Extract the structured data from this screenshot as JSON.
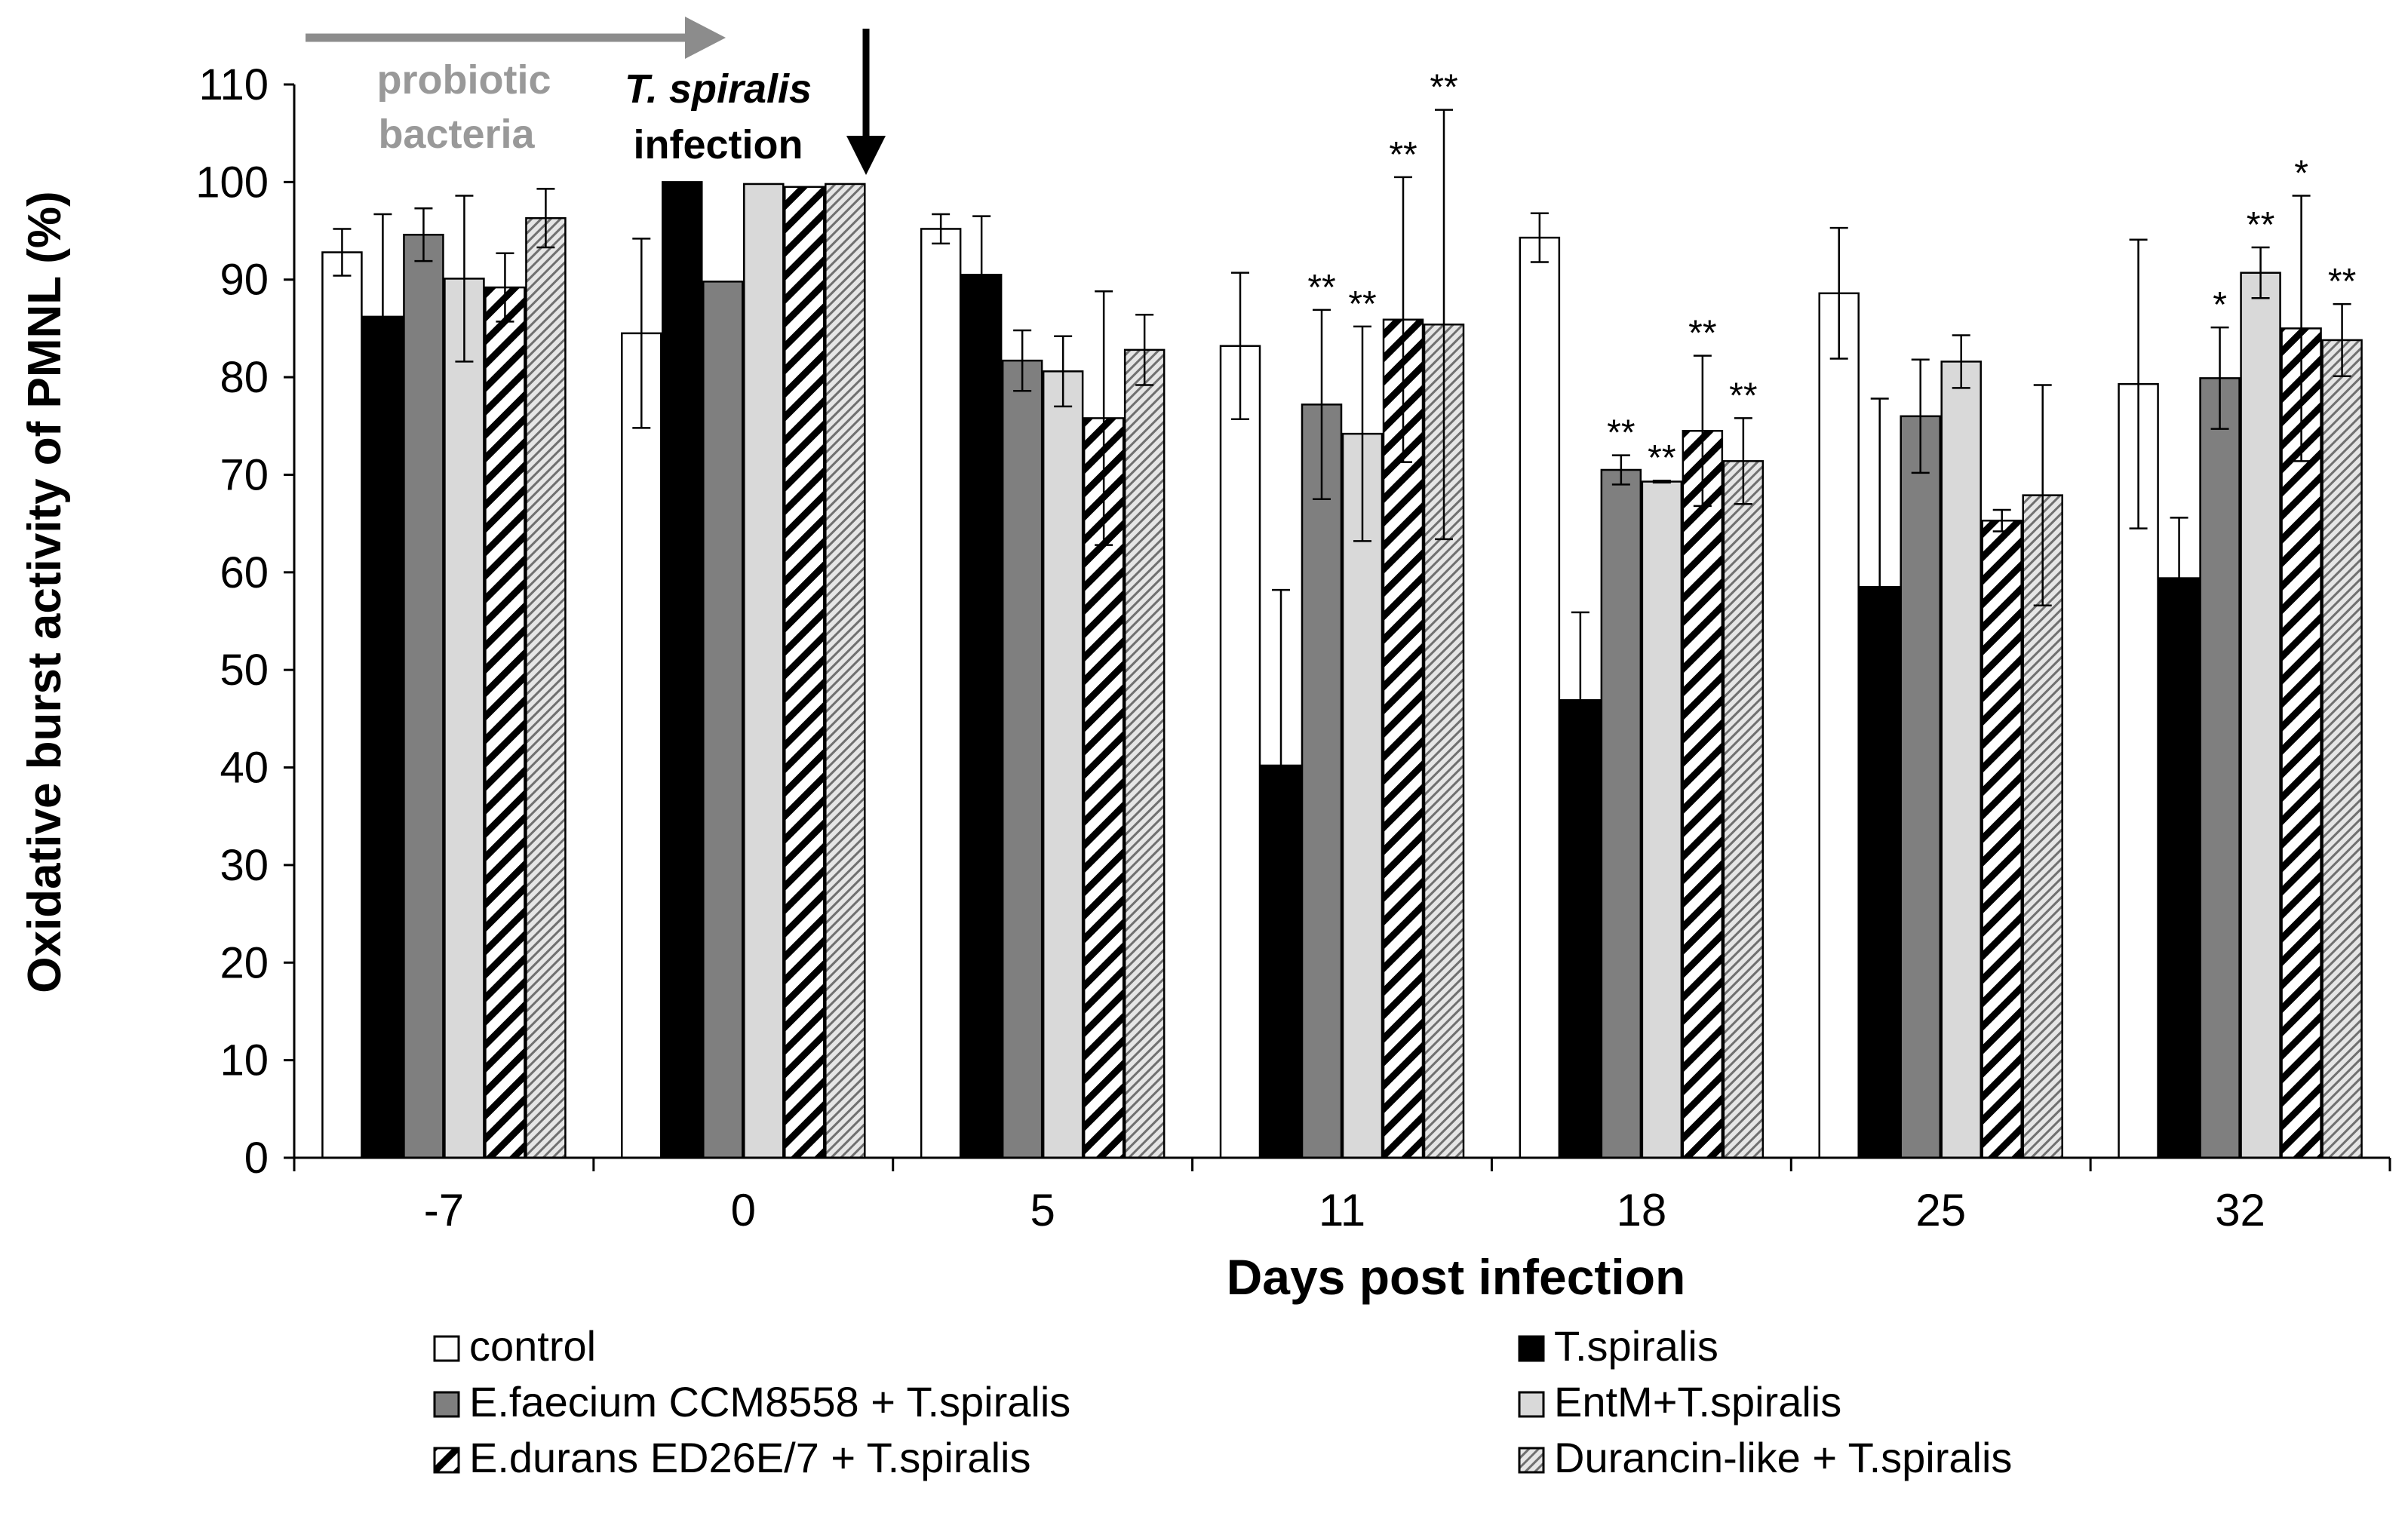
{
  "chart_data": {
    "type": "bar",
    "title": "",
    "xlabel": "Days post infection",
    "ylabel": "Oxidative burst activity of PMNL (%)",
    "ylim": [
      0,
      110
    ],
    "ytick_step": 10,
    "yticks": [
      "0",
      "10",
      "20",
      "30",
      "40",
      "50",
      "60",
      "70",
      "80",
      "90",
      "100",
      "110"
    ],
    "categories": [
      "-7",
      "0",
      "5",
      "11",
      "18",
      "25",
      "32"
    ],
    "series": [
      {
        "name": "control",
        "style": "white",
        "values": [
          92.8,
          84.5,
          95.2,
          83.2,
          94.3,
          88.6,
          79.3
        ],
        "errors": [
          2.4,
          9.7,
          1.5,
          7.5,
          2.5,
          6.7,
          14.8
        ],
        "sig": [
          "",
          "",
          "",
          "",
          "",
          "",
          ""
        ]
      },
      {
        "name": "T.spiralis",
        "style": "black",
        "values": [
          86.2,
          100.0,
          90.5,
          40.2,
          46.9,
          58.5,
          59.4
        ],
        "errors": [
          10.5,
          0,
          6.0,
          18.0,
          9.0,
          19.3,
          6.2
        ],
        "sig": [
          "",
          "",
          "",
          "",
          "",
          "",
          ""
        ]
      },
      {
        "name": "E.faecium CCM8558 + T.spiralis",
        "style": "darkgray",
        "values": [
          94.6,
          89.8,
          81.7,
          77.2,
          70.5,
          76.0,
          79.9
        ],
        "errors": [
          2.7,
          0,
          3.1,
          9.7,
          1.5,
          5.8,
          5.2
        ],
        "sig": [
          "",
          "",
          "",
          "**",
          "**",
          "",
          "*"
        ]
      },
      {
        "name": "EntM+T.spiralis",
        "style": "lightgray",
        "values": [
          90.1,
          99.8,
          80.6,
          74.2,
          69.3,
          81.6,
          90.7
        ],
        "errors": [
          8.5,
          0,
          3.6,
          11.0,
          0.1,
          2.7,
          2.6
        ],
        "sig": [
          "",
          "",
          "",
          "**",
          "**",
          "",
          "**"
        ]
      },
      {
        "name": "E.durans ED26E/7 + T.spiralis",
        "style": "hatch",
        "values": [
          89.2,
          99.5,
          75.8,
          85.9,
          74.5,
          65.3,
          85.0
        ],
        "errors": [
          3.5,
          0,
          13.0,
          14.6,
          7.7,
          1.1,
          13.6
        ],
        "sig": [
          "",
          "",
          "",
          "**",
          "**",
          "",
          "*"
        ]
      },
      {
        "name": "Durancin-like + T.spiralis",
        "style": "finehatch",
        "values": [
          96.3,
          99.8,
          82.8,
          85.4,
          71.4,
          67.9,
          83.8
        ],
        "errors": [
          3.0,
          0,
          3.6,
          22.0,
          4.4,
          11.3,
          3.7
        ],
        "sig": [
          "",
          "",
          "",
          "**",
          "**",
          "",
          "**"
        ]
      }
    ],
    "annotations": {
      "probiotic_line1": "probiotic",
      "probiotic_line2": "bacteria",
      "infection_line1": "T. spiralis",
      "infection_line2": "infection"
    },
    "legend_position": "bottom",
    "grid": false
  },
  "colors": {
    "probiotic_arrow": "#8c8c8c",
    "darkgray": "#7f7f7f",
    "lightgray": "#d9d9d9",
    "black": "#000000",
    "white": "#ffffff"
  }
}
